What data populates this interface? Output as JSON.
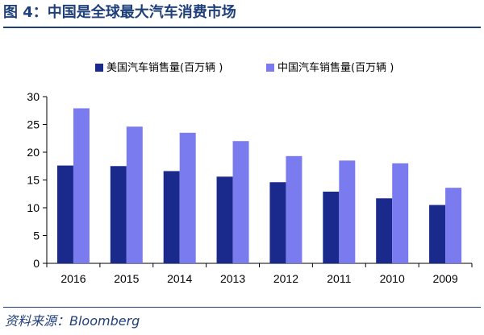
{
  "figure": {
    "title": "图 4：中国是全球最大汽车消费市场",
    "source": "资料来源：Bloomberg"
  },
  "chart_data": {
    "type": "bar",
    "categories": [
      "2016",
      "2015",
      "2014",
      "2013",
      "2012",
      "2011",
      "2010",
      "2009"
    ],
    "series": [
      {
        "name": "美国汽车销售量(百万辆 )",
        "color": "#1a2a8c",
        "values": [
          17.6,
          17.5,
          16.6,
          15.6,
          14.6,
          12.9,
          11.7,
          10.5
        ]
      },
      {
        "name": "中国汽车销售量(百万辆 )",
        "color": "#7b7bf0",
        "values": [
          27.9,
          24.6,
          23.5,
          22.0,
          19.3,
          18.5,
          18.0,
          13.6
        ]
      }
    ],
    "ylim": [
      0,
      30
    ],
    "yticks": [
      0,
      5,
      10,
      15,
      20,
      25,
      30
    ],
    "legend_position": "top",
    "grid": false
  }
}
